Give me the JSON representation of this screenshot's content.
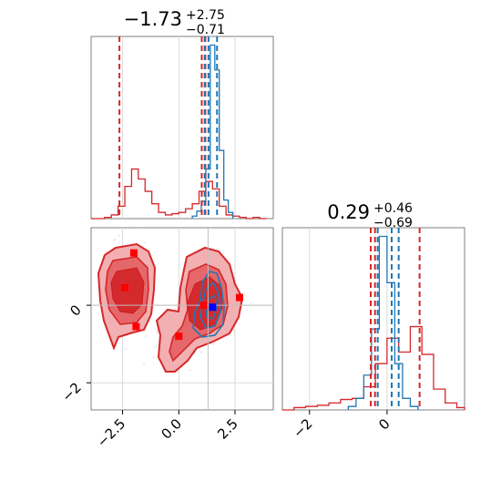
{
  "chart_data": [
    {
      "type": "histogram",
      "panel": "marginal-x",
      "title": {
        "main": "−1.73",
        "sup": "+2.75",
        "sub": "−0.71"
      },
      "xlim": [
        -3.9,
        4.2
      ],
      "x_ticks": [
        -2.5,
        0.0,
        2.5
      ],
      "grid": true,
      "series": [
        {
          "color": "#d62728",
          "bin_edges": [
            -3.9,
            -3.6,
            -3.3,
            -3.0,
            -2.7,
            -2.4,
            -2.1,
            -1.8,
            -1.5,
            -1.2,
            -0.9,
            -0.6,
            -0.3,
            0.0,
            0.3,
            0.6,
            0.9,
            1.2,
            1.5,
            1.8,
            2.1,
            2.4,
            2.7,
            3.0,
            3.3,
            3.6,
            3.9
          ],
          "counts": [
            0,
            0,
            1,
            3,
            10,
            26,
            40,
            32,
            22,
            12,
            5,
            3,
            4,
            5,
            8,
            12,
            22,
            30,
            24,
            10,
            3,
            2,
            1,
            0,
            1,
            0
          ],
          "quantile_lines": [
            -2.64,
            1.02,
            1.18
          ]
        },
        {
          "color": "#1f77b4",
          "bin_edges": [
            0.6,
            0.8,
            1.0,
            1.2,
            1.4,
            1.6,
            1.8,
            2.0,
            2.2,
            2.4
          ],
          "counts": [
            2,
            6,
            14,
            40,
            140,
            120,
            55,
            15,
            5
          ],
          "quantile_lines": [
            1.15,
            1.32,
            1.7
          ]
        }
      ]
    },
    {
      "type": "histogram",
      "panel": "marginal-y",
      "title": {
        "main": "0.29",
        "sup": "+0.46",
        "sub": "−0.69"
      },
      "xlim": [
        -2.7,
        2.0
      ],
      "x_ticks": [
        -2,
        0
      ],
      "grid": true,
      "series": [
        {
          "color": "#d62728",
          "bin_edges": [
            -2.7,
            -2.4,
            -2.1,
            -1.8,
            -1.5,
            -1.2,
            -0.9,
            -0.6,
            -0.3,
            0.0,
            0.3,
            0.6,
            0.9,
            1.2,
            1.5,
            1.8,
            2.0
          ],
          "counts": [
            0,
            2,
            3,
            4,
            6,
            9,
            10,
            20,
            40,
            62,
            50,
            72,
            48,
            18,
            6,
            2
          ],
          "quantile_lines": [
            -0.42,
            -0.31,
            0.84
          ]
        },
        {
          "color": "#1f77b4",
          "bin_edges": [
            -1.0,
            -0.8,
            -0.6,
            -0.4,
            -0.2,
            0.0,
            0.2,
            0.4,
            0.6,
            0.8
          ],
          "counts": [
            3,
            10,
            30,
            70,
            150,
            110,
            40,
            10,
            3
          ],
          "quantile_lines": [
            -0.24,
            0.12,
            0.3
          ]
        }
      ]
    },
    {
      "type": "contour",
      "panel": "joint",
      "xlim": [
        -3.9,
        4.2
      ],
      "ylim": [
        -2.7,
        2.0
      ],
      "x_ticks": [
        -2.5,
        0.0,
        2.5
      ],
      "y_ticks": [
        -2,
        0
      ],
      "grid": true,
      "crosshair": {
        "x": 1.3,
        "y": 0.0
      },
      "series": [
        {
          "color": "#d62728",
          "style": "filled-contours"
        },
        {
          "color": "#1f77b4",
          "style": "line-contours"
        }
      ],
      "markers": [
        {
          "color": "#ff0000",
          "x": -2.0,
          "y": 1.35
        },
        {
          "color": "#ff0000",
          "x": -2.4,
          "y": 0.45
        },
        {
          "color": "#ff0000",
          "x": -1.9,
          "y": -0.55
        },
        {
          "color": "#ff0000",
          "x": 0.0,
          "y": -0.8
        },
        {
          "color": "#ff0000",
          "x": 1.1,
          "y": 0.0
        },
        {
          "color": "#ff0000",
          "x": 2.7,
          "y": 0.2
        },
        {
          "color": "#0000ff",
          "x": 1.5,
          "y": -0.05
        }
      ]
    }
  ],
  "labels": {
    "top_ticks": [
      "−2.5",
      "0.0",
      "2.5"
    ],
    "right_ticks": [
      "−2",
      "0"
    ],
    "joint_y_ticks": [
      "0",
      "−2"
    ]
  },
  "colors": {
    "red": "#d62728",
    "blue": "#1f77b4",
    "grid": "#d9d9d9"
  }
}
